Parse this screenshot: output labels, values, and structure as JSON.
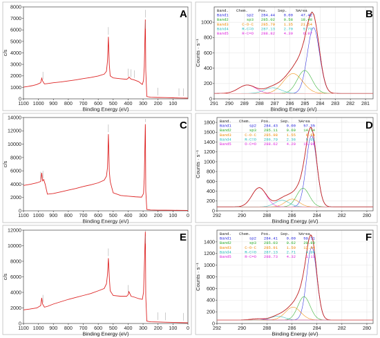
{
  "chart_data": [
    {
      "id": "A",
      "kind": "survey",
      "type": "line",
      "letter": "A",
      "xlabel": "Binding Energy (eV)",
      "ylabel": "c/s",
      "xlim": [
        1100,
        0
      ],
      "ylim": [
        0,
        8000
      ],
      "xticks": [
        "1100",
        "1000",
        "900",
        "800",
        "700",
        "600",
        "500",
        "400",
        "300",
        "200",
        "100"
      ],
      "yticks": [
        "0",
        "1000",
        "2000",
        "3000",
        "4000",
        "5000",
        "6000",
        "7000",
        "8000"
      ],
      "color": "#dd2222",
      "series": [
        {
          "x": [
            1100,
            1070,
            1040,
            1010,
            985,
            978,
            972,
            960,
            940,
            900,
            850,
            800,
            750,
            700,
            650,
            600,
            560,
            545,
            538,
            532,
            526,
            520,
            500,
            450,
            410,
            400,
            395,
            380,
            360,
            330,
            305,
            297,
            292,
            285,
            284.4,
            282,
            275,
            250,
            200,
            150,
            100,
            50,
            0
          ],
          "y": [
            1020,
            1080,
            1150,
            1250,
            1400,
            1800,
            1550,
            1300,
            1330,
            1400,
            1470,
            1560,
            1650,
            1760,
            1860,
            1990,
            2150,
            2400,
            3300,
            5400,
            3000,
            2000,
            1820,
            1750,
            1700,
            1780,
            1900,
            1720,
            1650,
            1500,
            1250,
            1600,
            2800,
            6900,
            6600,
            2500,
            200,
            140,
            120,
            110,
            90,
            70,
            60
          ]
        }
      ],
      "annotation_positions_be": [
        970,
        532,
        400,
        380,
        358,
        285,
        284,
        200,
        60,
        30
      ]
    },
    {
      "id": "C",
      "kind": "survey",
      "type": "line",
      "letter": "C",
      "xlabel": "Binding Energy (eV)",
      "ylabel": "c/s",
      "xlim": [
        1100,
        0
      ],
      "ylim": [
        0,
        14000
      ],
      "xticks": [
        "1100",
        "1000",
        "900",
        "800",
        "700",
        "600",
        "500",
        "400",
        "300",
        "200",
        "100",
        "0"
      ],
      "yticks": [
        "0",
        "2000",
        "4000",
        "6000",
        "8000",
        "10000",
        "12000",
        "14000"
      ],
      "color": "#dd2222",
      "series": [
        {
          "x": [
            1100,
            1050,
            1010,
            985,
            978,
            972,
            965,
            955,
            940,
            900,
            850,
            800,
            750,
            700,
            650,
            600,
            560,
            545,
            538,
            532,
            526,
            520,
            500,
            450,
            400,
            350,
            310,
            297,
            292,
            285,
            284.4,
            282,
            275,
            250,
            200,
            150,
            100,
            50,
            0
          ],
          "y": [
            3800,
            4000,
            4200,
            4400,
            5700,
            4500,
            4700,
            4000,
            2500,
            2600,
            2850,
            3100,
            3350,
            3650,
            3900,
            4200,
            4600,
            5200,
            6500,
            11500,
            6000,
            4400,
            2700,
            2300,
            2200,
            2100,
            2050,
            2600,
            5000,
            13000,
            12500,
            3000,
            200,
            120,
            100,
            90,
            80,
            70,
            60
          ]
        }
      ],
      "annotation_positions_be": [
        985,
        970,
        532,
        285
      ]
    },
    {
      "id": "E",
      "kind": "survey",
      "type": "line",
      "letter": "E",
      "xlabel": "Binding Energy (eV)",
      "ylabel": "c/s",
      "xlim": [
        1100,
        0
      ],
      "ylim": [
        0,
        12000
      ],
      "xticks": [
        "1100",
        "1000",
        "900",
        "800",
        "700",
        "600",
        "500",
        "400",
        "300",
        "200",
        "100",
        "0"
      ],
      "yticks": [
        "0",
        "2000",
        "4000",
        "6000",
        "8000",
        "10000",
        "12000"
      ],
      "color": "#dd2222",
      "series": [
        {
          "x": [
            1100,
            1060,
            1010,
            985,
            978,
            972,
            960,
            940,
            900,
            850,
            800,
            750,
            700,
            650,
            600,
            560,
            545,
            538,
            532,
            526,
            520,
            500,
            450,
            410,
            400,
            395,
            380,
            360,
            330,
            305,
            297,
            292,
            285,
            284.4,
            282,
            275,
            250,
            200,
            150,
            100,
            50,
            0
          ],
          "y": [
            1750,
            1850,
            2000,
            2300,
            3300,
            2500,
            2100,
            2200,
            2500,
            2800,
            3100,
            3350,
            3600,
            3850,
            4200,
            4500,
            5100,
            6300,
            8400,
            6000,
            4200,
            3600,
            3500,
            3500,
            3700,
            4100,
            3500,
            3400,
            3200,
            3100,
            4000,
            7000,
            11800,
            11300,
            3500,
            300,
            220,
            190,
            160,
            140,
            110,
            90
          ]
        }
      ],
      "annotation_positions_be": [
        970,
        532,
        400,
        285,
        284,
        200,
        150,
        30
      ]
    },
    {
      "id": "B",
      "kind": "highres",
      "type": "line",
      "letter": "B",
      "xlabel": "Binding Energy (eV)",
      "ylabel": "Counts · s⁻¹",
      "xlim": [
        291,
        280.5
      ],
      "ylim": [
        0,
        1200
      ],
      "xticks": [
        "291",
        "290",
        "289",
        "288",
        "287",
        "286",
        "285",
        "284",
        "283",
        "282",
        "281"
      ],
      "yticks": [
        "0",
        "200",
        "400",
        "600",
        "800",
        "1000"
      ],
      "table": {
        "header": [
          "Band.",
          "Chem.",
          "Pos.",
          "Sep.",
          "%Area"
        ],
        "rows": [
          [
            "Band1",
            "sp2",
            "284.44",
            "0.00",
            "47.42"
          ],
          [
            "Band2",
            "sp3",
            "285.02",
            "0.58",
            "18.48"
          ],
          [
            "Band3",
            "C-O-C",
            "285.79",
            "1.35",
            "21.54"
          ],
          [
            "Band4",
            "R-C=O",
            "287.13",
            "2.70",
            "5.70"
          ],
          [
            "Band5",
            "R-C=O",
            "288.82",
            "4.39",
            "6.87"
          ]
        ]
      },
      "band_colors": [
        "#2222dd",
        "#22aa22",
        "#ee8800",
        "#22bbbb",
        "#dd22dd"
      ],
      "bands": [
        {
          "center": 284.44,
          "height": 860,
          "fwhm": 0.95
        },
        {
          "center": 285.02,
          "height": 300,
          "fwhm": 1.15
        },
        {
          "center": 285.79,
          "height": 260,
          "fwhm": 1.5
        },
        {
          "center": 287.13,
          "height": 75,
          "fwhm": 1.3
        },
        {
          "center": 288.82,
          "height": 110,
          "fwhm": 1.35
        }
      ],
      "background": [
        70,
        70
      ]
    },
    {
      "id": "D",
      "kind": "highres",
      "type": "line",
      "letter": "D",
      "xlabel": "Binding Energy (eV)",
      "ylabel": "Counts · s⁻¹",
      "xlim": [
        292,
        279.5
      ],
      "ylim": [
        0,
        1900
      ],
      "xticks": [
        "292",
        "290",
        "288",
        "286",
        "284",
        "282",
        "280"
      ],
      "yticks": [
        "0",
        "200",
        "400",
        "600",
        "800",
        "1000",
        "1200",
        "1400",
        "1600",
        "1800"
      ],
      "table": {
        "header": [
          "Band.",
          "Chem.",
          "Pos.",
          "Sep.",
          "%Area"
        ],
        "rows": [
          [
            "Band1",
            "sp2",
            "284.43",
            "0.00",
            "57.35"
          ],
          [
            "Band2",
            "sp3",
            "285.11",
            "0.69",
            "14.14"
          ],
          [
            "Band3",
            "C-O-C",
            "285.98",
            "1.55",
            "6.64"
          ],
          [
            "Band4",
            "R-C=O",
            "286.79",
            "2.36",
            "5.91"
          ],
          [
            "Band5",
            "O-C=O",
            "288.62",
            "4.20",
            "15.96"
          ]
        ]
      },
      "band_colors": [
        "#2222dd",
        "#22aa22",
        "#ee8800",
        "#22bbbb",
        "#dd22dd"
      ],
      "bands": [
        {
          "center": 284.43,
          "height": 1450,
          "fwhm": 1.0
        },
        {
          "center": 285.11,
          "height": 380,
          "fwhm": 1.2
        },
        {
          "center": 285.98,
          "height": 160,
          "fwhm": 1.3
        },
        {
          "center": 286.79,
          "height": 135,
          "fwhm": 1.35
        },
        {
          "center": 288.62,
          "height": 390,
          "fwhm": 1.35
        }
      ],
      "background": [
        80,
        80
      ]
    },
    {
      "id": "F",
      "kind": "highres",
      "type": "line",
      "letter": "F",
      "xlabel": "Binding Energy (eV)",
      "ylabel": "Counts · s⁻¹",
      "xlim": [
        292,
        279.5
      ],
      "ylim": [
        0,
        1600
      ],
      "xticks": [
        "292",
        "290",
        "288",
        "286",
        "284",
        "282",
        "280"
      ],
      "yticks": [
        "0",
        "200",
        "400",
        "600",
        "800",
        "1000",
        "1200",
        "1400"
      ],
      "table": {
        "header": [
          "Band.",
          "Chem.",
          "Pos.",
          "Sep.",
          "%Area"
        ],
        "rows": [
          [
            "Band1",
            "sp2",
            "284.41",
            "0.00",
            "59.31"
          ],
          [
            "Band2",
            "sp3",
            "285.03",
            "0.62",
            "20.80"
          ],
          [
            "Band3",
            "C-O-C",
            "285.91",
            "1.50",
            "13.84"
          ],
          [
            "Band4",
            "R-C=O",
            "287.13",
            "2.71",
            "4.94"
          ],
          [
            "Band5",
            "R-C=O",
            "288.73",
            "4.32",
            "1.11"
          ]
        ]
      },
      "band_colors": [
        "#2222dd",
        "#22aa22",
        "#ee8800",
        "#22bbbb",
        "#dd22dd"
      ],
      "bands": [
        {
          "center": 284.41,
          "height": 1250,
          "fwhm": 0.95
        },
        {
          "center": 285.03,
          "height": 400,
          "fwhm": 1.15
        },
        {
          "center": 285.91,
          "height": 220,
          "fwhm": 1.45
        },
        {
          "center": 287.13,
          "height": 65,
          "fwhm": 1.3
        },
        {
          "center": 288.73,
          "height": 20,
          "fwhm": 1.3
        }
      ],
      "background": [
        60,
        60
      ]
    }
  ]
}
